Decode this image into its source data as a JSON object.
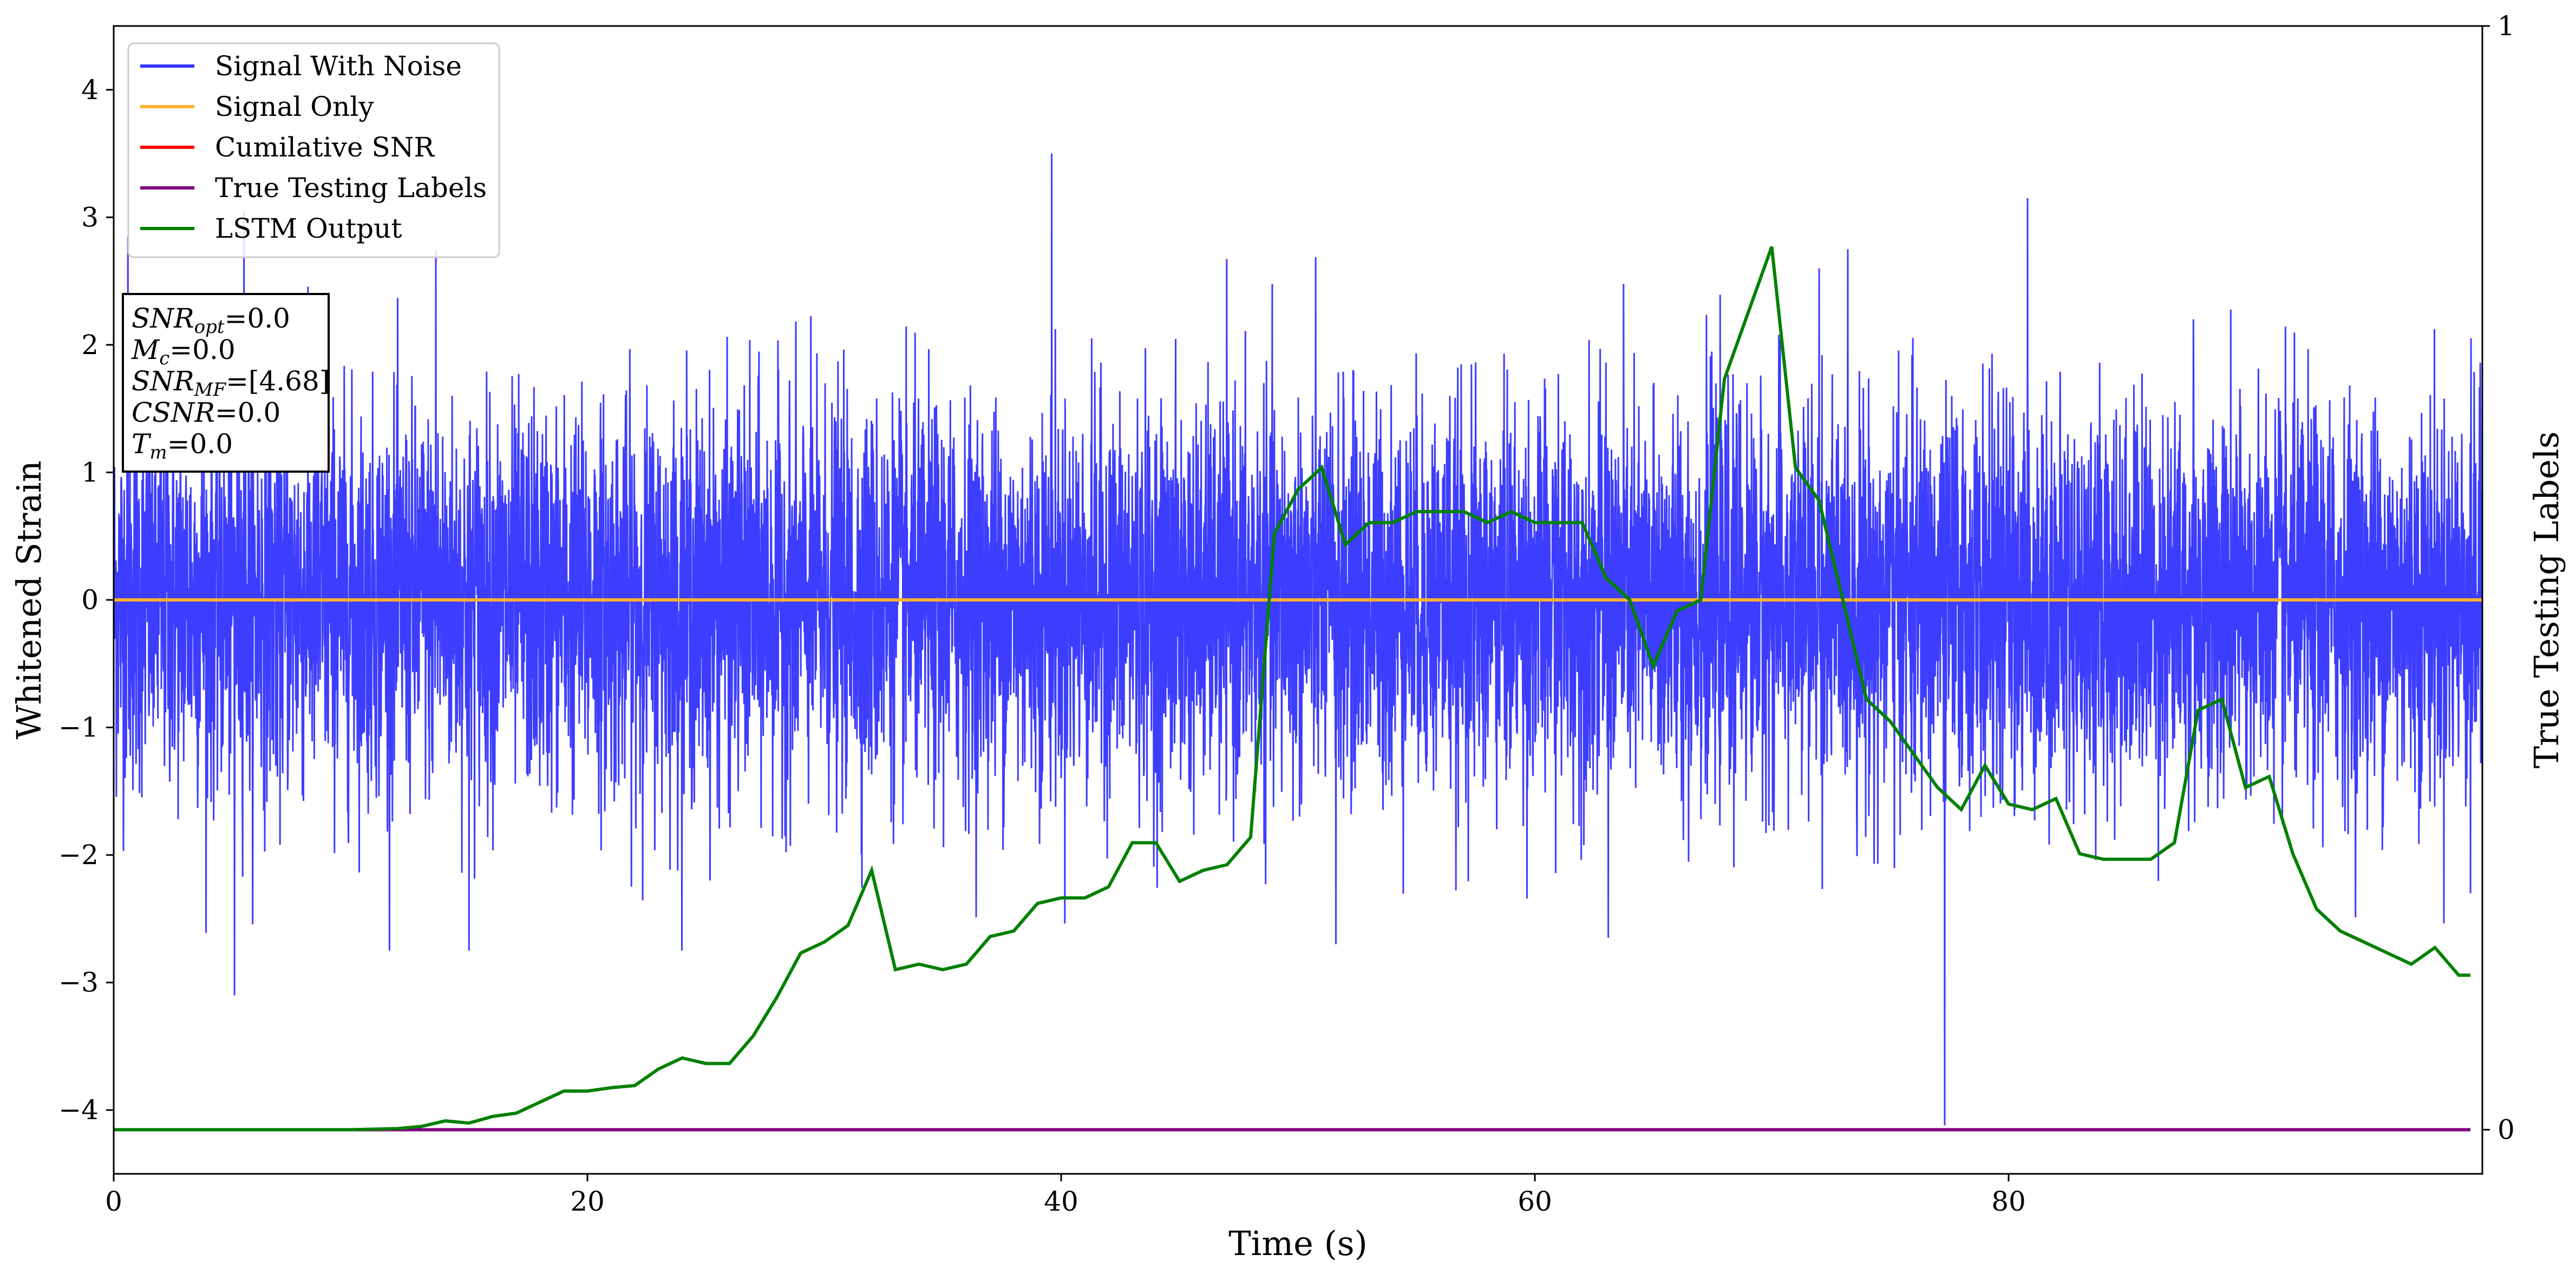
{
  "chart_data": {
    "type": "line",
    "xlabel": "Time (s)",
    "ylabel": "Whitened Strain",
    "y2label": "True Testing Labels",
    "xlim": [
      0,
      100
    ],
    "ylim": [
      -4.5,
      4.5
    ],
    "y2lim": [
      -0.04,
      1.0
    ],
    "xticks": [
      0,
      20,
      40,
      60,
      80
    ],
    "yticks": [
      -4,
      -3,
      -2,
      -1,
      0,
      1,
      2,
      3,
      4
    ],
    "y2ticks": [
      0,
      1
    ],
    "legend_position": "upper-left",
    "grid": false,
    "series": [
      {
        "name": "Signal With Noise",
        "axis": "left",
        "color": "#3333ff",
        "style": "noise",
        "mean": 0.0,
        "std": 0.75,
        "spikes": [
          {
            "x": 0.6,
            "y": 2.85
          },
          {
            "x": 5.1,
            "y": -3.1
          },
          {
            "x": 5.5,
            "y": 3.05
          },
          {
            "x": 13.6,
            "y": 2.75
          },
          {
            "x": 15.0,
            "y": -2.75
          },
          {
            "x": 39.6,
            "y": 3.5
          },
          {
            "x": 51.6,
            "y": -2.7
          },
          {
            "x": 63.1,
            "y": -2.65
          },
          {
            "x": 77.3,
            "y": -4.12
          },
          {
            "x": 77.6,
            "y": 1.6
          },
          {
            "x": 80.8,
            "y": 3.15
          },
          {
            "x": 72.0,
            "y": 2.6
          },
          {
            "x": 87.8,
            "y": 2.2
          },
          {
            "x": 99.5,
            "y": -2.3
          }
        ]
      },
      {
        "name": "Signal Only",
        "axis": "left",
        "color": "#ffb32e",
        "x": [
          0,
          100
        ],
        "y": [
          0,
          0
        ]
      },
      {
        "name": "Cumilative SNR",
        "axis": "left",
        "color": "#ff0000",
        "x": [
          0,
          100
        ],
        "y": [
          0,
          0
        ]
      },
      {
        "name": "True Testing Labels",
        "axis": "right",
        "color": "#800080",
        "x": [
          0,
          99.5
        ],
        "y": [
          0,
          0
        ]
      },
      {
        "name": "LSTM Output",
        "axis": "right",
        "color": "#008000",
        "x": [
          0,
          10,
          12,
          13,
          14,
          15,
          16,
          17,
          18,
          19,
          20,
          21,
          22,
          23,
          24,
          25,
          26,
          27,
          28,
          29,
          30,
          31,
          32,
          33,
          34,
          35,
          36,
          37,
          38,
          39,
          40,
          41,
          42,
          43,
          44,
          45,
          46,
          47,
          48,
          49,
          50,
          51,
          52,
          53,
          54,
          55,
          56,
          57,
          58,
          59,
          60,
          61,
          62,
          63,
          64,
          65,
          66,
          67,
          68,
          69,
          70,
          71,
          72,
          73,
          74,
          75,
          76,
          77,
          78,
          79,
          80,
          81,
          82,
          83,
          84,
          85,
          86,
          87,
          88,
          89,
          90,
          91,
          92,
          93,
          94,
          95,
          96,
          97,
          98,
          99,
          99.5
        ],
        "y": [
          0.0,
          0.0,
          0.001,
          0.003,
          0.008,
          0.006,
          0.012,
          0.015,
          0.025,
          0.035,
          0.035,
          0.038,
          0.04,
          0.055,
          0.065,
          0.06,
          0.06,
          0.085,
          0.12,
          0.16,
          0.17,
          0.185,
          0.235,
          0.145,
          0.15,
          0.145,
          0.15,
          0.175,
          0.18,
          0.205,
          0.21,
          0.21,
          0.22,
          0.26,
          0.26,
          0.225,
          0.235,
          0.24,
          0.265,
          0.54,
          0.58,
          0.6,
          0.53,
          0.55,
          0.55,
          0.56,
          0.56,
          0.56,
          0.55,
          0.56,
          0.55,
          0.55,
          0.55,
          0.5,
          0.48,
          0.42,
          0.47,
          0.48,
          0.68,
          0.74,
          0.8,
          0.6,
          0.57,
          0.48,
          0.39,
          0.37,
          0.34,
          0.31,
          0.29,
          0.33,
          0.295,
          0.29,
          0.3,
          0.25,
          0.245,
          0.245,
          0.245,
          0.26,
          0.38,
          0.39,
          0.31,
          0.32,
          0.25,
          0.2,
          0.18,
          0.17,
          0.16,
          0.15,
          0.165,
          0.14,
          0.14
        ]
      }
    ],
    "info_box": [
      {
        "base": "SNR",
        "sub": "opt",
        "value": "=0.0"
      },
      {
        "base": "M",
        "sub": "c",
        "value": "=0.0"
      },
      {
        "base": "SNR",
        "sub": "MF",
        "value": "=[4.68]"
      },
      {
        "base": "CSNR",
        "sub": "",
        "value": "=0.0"
      },
      {
        "base": "T",
        "sub": "m",
        "value": "=0.0"
      }
    ]
  }
}
